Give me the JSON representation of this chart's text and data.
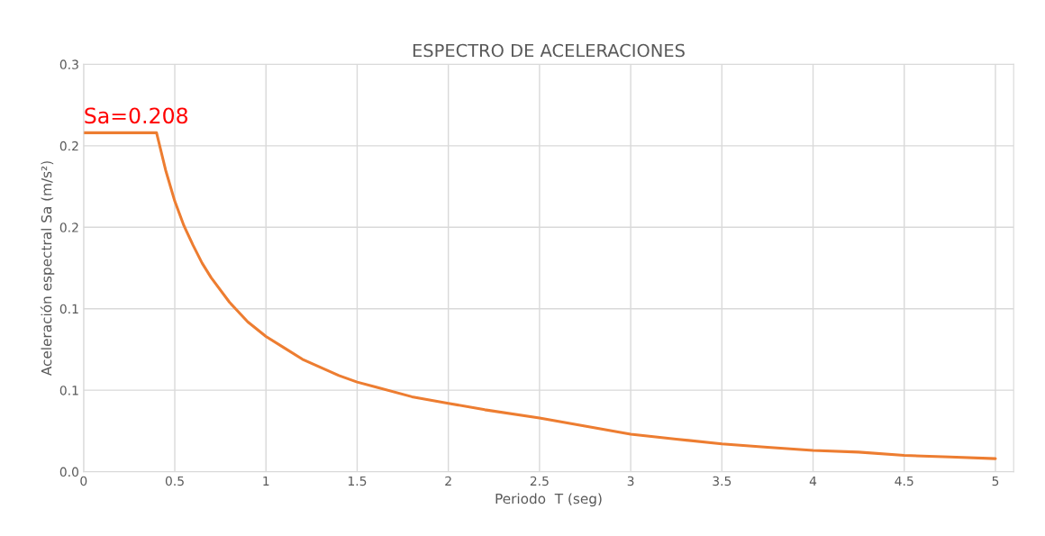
{
  "chart_data": {
    "type": "line",
    "title": "ESPECTRO DE ACELERACIONES",
    "xlabel": "Periodo  T (seg)",
    "ylabel": "Aceleración espectral Sa (m/s²)",
    "x": [
      0,
      0.4,
      0.45,
      0.5,
      0.55,
      0.6,
      0.65,
      0.7,
      0.8,
      0.9,
      1.0,
      1.1,
      1.2,
      1.3,
      1.4,
      1.5,
      1.6,
      1.8,
      2.0,
      2.2,
      2.5,
      2.75,
      3.0,
      3.25,
      3.5,
      3.75,
      4.0,
      4.25,
      4.5,
      4.75,
      5.0
    ],
    "series": [
      {
        "color": "#ed7d31",
        "values": [
          0.208,
          0.208,
          0.185,
          0.166,
          0.151,
          0.139,
          0.128,
          0.119,
          0.104,
          0.092,
          0.083,
          0.076,
          0.069,
          0.064,
          0.059,
          0.055,
          0.052,
          0.046,
          0.042,
          0.038,
          0.033,
          0.028,
          0.023,
          0.02,
          0.017,
          0.015,
          0.013,
          0.012,
          0.01,
          0.009,
          0.008
        ]
      }
    ],
    "xlim": [
      0,
      5.1
    ],
    "xticks": [
      0,
      0.5,
      1,
      1.5,
      2,
      2.5,
      3,
      3.5,
      4,
      4.5,
      5
    ],
    "ylim": [
      0,
      0.25
    ],
    "yticks": [
      {
        "value": 0,
        "label": "0.0"
      },
      {
        "value": 0.05,
        "label": "0.1"
      },
      {
        "value": 0.1,
        "label": "0.1"
      },
      {
        "value": 0.15,
        "label": "0.2"
      },
      {
        "value": 0.2,
        "label": "0.2"
      },
      {
        "value": 0.25,
        "label": "0.3"
      }
    ],
    "grid": true,
    "marker": "none",
    "line_style": "solid",
    "annotations": [
      {
        "text": "Sa=0.208",
        "x": 0,
        "y": 0.208
      }
    ]
  }
}
